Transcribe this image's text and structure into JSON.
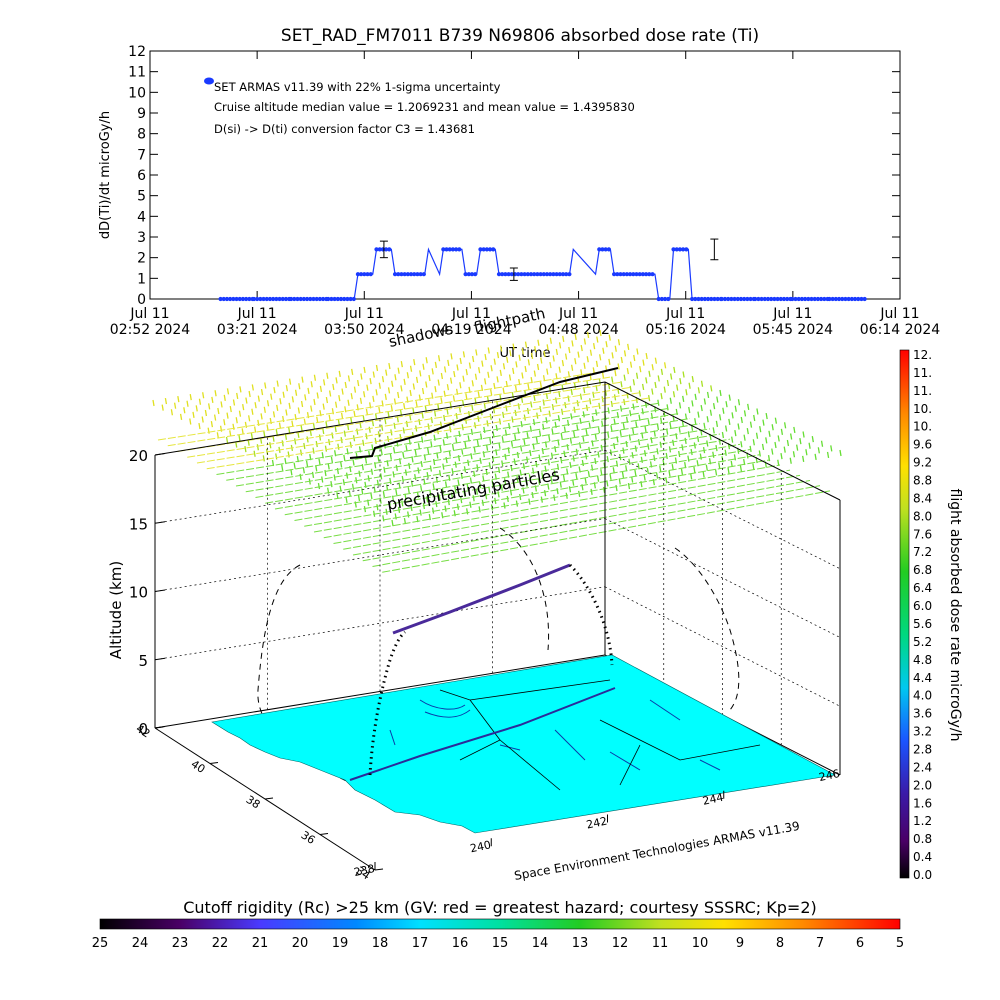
{
  "chart_data": [
    {
      "type": "line",
      "title": "SET_RAD_FM7011   B739  N69806  absorbed dose rate (Ti)",
      "xlabel": "UT time",
      "ylabel": "dD(Ti)/dt microGy/h",
      "ylim": [
        0,
        12
      ],
      "ytick_labels": [
        "0",
        "1",
        "2",
        "3",
        "4",
        "5",
        "6",
        "7",
        "8",
        "9",
        "10",
        "11",
        "12"
      ],
      "xtick_labels": [
        {
          "date": "Jul 11",
          "time": "02:52 2024"
        },
        {
          "date": "Jul 11",
          "time": "03:21 2024"
        },
        {
          "date": "Jul 11",
          "time": "03:50 2024"
        },
        {
          "date": "Jul 11",
          "time": "04:19 2024"
        },
        {
          "date": "Jul 11",
          "time": "04:48 2024"
        },
        {
          "date": "Jul 11",
          "time": "05:16 2024"
        },
        {
          "date": "Jul 11",
          "time": "05:45 2024"
        },
        {
          "date": "Jul 11",
          "time": "06:14 2024"
        }
      ],
      "xlim": [
        "02:52",
        "06:14"
      ],
      "legend": [
        "SET ARMAS v11.39 with 22% 1-sigma uncertainty",
        "Cruise altitude median value = 1.2069231 and mean value = 1.4395830",
        "D(si) -> D(ti) conversion factor C3 = 1.43681"
      ],
      "legend_placement": "top-left",
      "series_color": "#1a3aff",
      "series": [
        {
          "x": [
            "03:11",
            "03:20",
            "03:30",
            "03:40",
            "03:47",
            "03:48",
            "03:52",
            "03:53",
            "03:57",
            "03:58",
            "04:06",
            "04:07",
            "04:10",
            "04:11",
            "04:16",
            "04:17",
            "04:20",
            "04:21",
            "04:25",
            "04:26",
            "04:45",
            "04:46",
            "04:52",
            "04:53",
            "04:56",
            "04:57",
            "05:08",
            "05:09",
            "05:12",
            "05:13",
            "05:17",
            "05:18",
            "05:26",
            "05:35",
            "05:45",
            "05:55",
            "06:05"
          ],
          "values": [
            0,
            0,
            0,
            0,
            0,
            1.2,
            1.2,
            2.4,
            2.4,
            1.2,
            1.2,
            2.4,
            1.2,
            2.4,
            2.4,
            1.2,
            1.2,
            2.4,
            2.4,
            1.2,
            1.2,
            2.4,
            1.2,
            2.4,
            2.4,
            1.2,
            1.2,
            0,
            0,
            2.4,
            2.4,
            0,
            0,
            0,
            0,
            0,
            0
          ]
        }
      ],
      "error_bars": [
        {
          "x": "03:55",
          "y": 2.4,
          "err": 0.4
        },
        {
          "x": "04:30",
          "y": 1.2,
          "err": 0.3
        },
        {
          "x": "05:24",
          "y": 2.4,
          "err": 0.5
        }
      ]
    },
    {
      "type": "3d-surface",
      "zlabel": "Altitude (km)",
      "ztick_labels": [
        "0",
        "5",
        "10",
        "15",
        "20"
      ],
      "lat_tick_labels": [
        "34",
        "36",
        "38",
        "40",
        "42"
      ],
      "lon_tick_labels": [
        "238",
        "240",
        "242",
        "244",
        "246"
      ],
      "annotations": [
        "flightpath",
        "shadows",
        "precipitating particles"
      ],
      "credit": "Space Environment Technologies ARMAS v11.39",
      "dose_colorbar": {
        "label": "flight absorbed dose rate microGy/h",
        "tick_labels": [
          "12.",
          "11.",
          "11.",
          "10.",
          "10.",
          "9.6",
          "9.2",
          "8.8",
          "8.4",
          "8.0",
          "7.6",
          "7.2",
          "6.8",
          "6.4",
          "6.0",
          "5.6",
          "5.2",
          "4.8",
          "4.4",
          "4.0",
          "3.6",
          "3.2",
          "2.8",
          "2.4",
          "2.0",
          "1.6",
          "1.2",
          "0.8",
          "0.4",
          "0.0"
        ]
      },
      "rigidity_colorbar": {
        "label": "Cutoff rigidity (Rc) >25 km (GV: red = greatest hazard; courtesy SSSRC; Kp=2)",
        "tick_labels": [
          "25",
          "24",
          "23",
          "22",
          "21",
          "20",
          "19",
          "18",
          "17",
          "16",
          "15",
          "14",
          "13",
          "12",
          "11",
          "10",
          "9",
          "8",
          "7",
          "6",
          "5"
        ]
      },
      "colors": {
        "map_fill": "#00ffff",
        "flight_track": "#4a2a9a",
        "sheet_green": "#66dd33",
        "sheet_yellow": "#e0e020"
      }
    }
  ]
}
